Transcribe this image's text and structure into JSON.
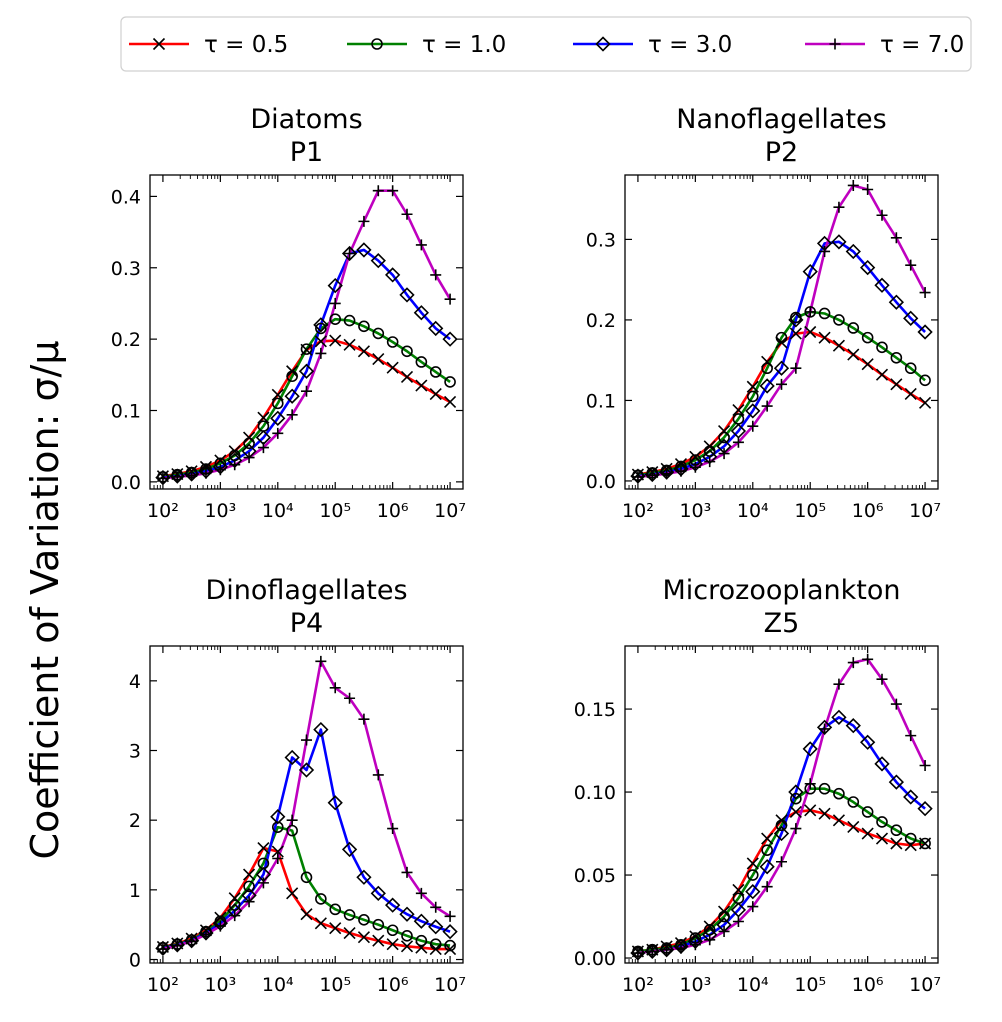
{
  "figure": {
    "ylabel": "Coefficient of Variation: σ/μ"
  },
  "legend": {
    "entries": [
      {
        "label": "τ = 0.5",
        "color": "#ff0000",
        "marker": "x"
      },
      {
        "label": "τ = 1.0",
        "color": "#008000",
        "marker": "o"
      },
      {
        "label": "τ = 3.0",
        "color": "#0000ff",
        "marker": "D"
      },
      {
        "label": "τ = 7.0",
        "color": "#bf00bf",
        "marker": "+"
      }
    ]
  },
  "chart_data": [
    {
      "type": "line",
      "title_line1": "Diatoms",
      "title_line2": "P1",
      "xscale": "log",
      "xlim": [
        100,
        10000000
      ],
      "xticks": [
        "10²",
        "10³",
        "10⁴",
        "10⁵",
        "10⁶",
        "10⁷"
      ],
      "ylim": [
        -0.01,
        0.43
      ],
      "yticks": [
        "0.0",
        "0.1",
        "0.2",
        "0.3",
        "0.4"
      ],
      "ytick_values": [
        0,
        0.1,
        0.2,
        0.3,
        0.4
      ],
      "x": [
        100,
        178,
        316,
        562,
        1000,
        1778,
        3162,
        5623,
        10000,
        17783,
        31623,
        56234,
        100000,
        177828,
        316228,
        562341,
        1000000,
        1778279,
        3162278,
        5623413,
        10000000
      ],
      "series": [
        {
          "name": "τ = 0.5",
          "values": [
            0.008,
            0.011,
            0.015,
            0.021,
            0.03,
            0.043,
            0.062,
            0.09,
            0.122,
            0.155,
            0.185,
            0.197,
            0.198,
            0.192,
            0.183,
            0.172,
            0.16,
            0.147,
            0.135,
            0.123,
            0.112
          ]
        },
        {
          "name": "τ = 1.0",
          "values": [
            0.007,
            0.01,
            0.013,
            0.018,
            0.026,
            0.037,
            0.054,
            0.078,
            0.11,
            0.148,
            0.186,
            0.215,
            0.228,
            0.226,
            0.218,
            0.208,
            0.196,
            0.183,
            0.168,
            0.154,
            0.14
          ]
        },
        {
          "name": "τ = 3.0",
          "values": [
            0.006,
            0.008,
            0.011,
            0.015,
            0.021,
            0.03,
            0.043,
            0.062,
            0.089,
            0.12,
            0.155,
            0.22,
            0.275,
            0.32,
            0.325,
            0.31,
            0.29,
            0.262,
            0.237,
            0.215,
            0.2
          ]
        },
        {
          "name": "τ = 7.0",
          "values": [
            0.005,
            0.007,
            0.009,
            0.012,
            0.017,
            0.024,
            0.034,
            0.048,
            0.068,
            0.094,
            0.127,
            0.18,
            0.25,
            0.32,
            0.365,
            0.408,
            0.408,
            0.375,
            0.332,
            0.29,
            0.256
          ]
        }
      ]
    },
    {
      "type": "line",
      "title_line1": "Nanoflagellates",
      "title_line2": "P2",
      "xscale": "log",
      "xlim": [
        100,
        10000000
      ],
      "xticks": [
        "10²",
        "10³",
        "10⁴",
        "10⁵",
        "10⁶",
        "10⁷"
      ],
      "ylim": [
        -0.01,
        0.38
      ],
      "yticks": [
        "0.0",
        "0.1",
        "0.2",
        "0.3"
      ],
      "ytick_values": [
        0,
        0.1,
        0.2,
        0.3
      ],
      "x": [
        100,
        178,
        316,
        562,
        1000,
        1778,
        3162,
        5623,
        10000,
        17783,
        31623,
        56234,
        100000,
        177828,
        316228,
        562341,
        1000000,
        1778279,
        3162278,
        5623413,
        10000000
      ],
      "series": [
        {
          "name": "τ = 0.5",
          "values": [
            0.008,
            0.011,
            0.015,
            0.021,
            0.03,
            0.043,
            0.062,
            0.088,
            0.117,
            0.148,
            0.172,
            0.183,
            0.185,
            0.178,
            0.168,
            0.157,
            0.145,
            0.132,
            0.12,
            0.108,
            0.097
          ]
        },
        {
          "name": "τ = 1.0",
          "values": [
            0.007,
            0.01,
            0.013,
            0.018,
            0.026,
            0.037,
            0.054,
            0.077,
            0.105,
            0.14,
            0.178,
            0.203,
            0.21,
            0.208,
            0.2,
            0.19,
            0.178,
            0.166,
            0.153,
            0.14,
            0.125
          ]
        },
        {
          "name": "τ = 3.0",
          "values": [
            0.006,
            0.008,
            0.011,
            0.015,
            0.021,
            0.03,
            0.043,
            0.062,
            0.087,
            0.118,
            0.14,
            0.2,
            0.26,
            0.295,
            0.297,
            0.285,
            0.265,
            0.243,
            0.222,
            0.202,
            0.185
          ]
        },
        {
          "name": "τ = 7.0",
          "values": [
            0.005,
            0.007,
            0.009,
            0.012,
            0.017,
            0.024,
            0.034,
            0.048,
            0.068,
            0.093,
            0.12,
            0.14,
            0.21,
            0.285,
            0.34,
            0.367,
            0.362,
            0.33,
            0.302,
            0.268,
            0.234
          ]
        }
      ]
    },
    {
      "type": "line",
      "title_line1": "Dinoflagellates",
      "title_line2": "P4",
      "xscale": "log",
      "xlim": [
        100,
        10000000
      ],
      "xticks": [
        "10²",
        "10³",
        "10⁴",
        "10⁵",
        "10⁶",
        "10⁷"
      ],
      "ylim": [
        -0.05,
        4.5
      ],
      "yticks": [
        "0",
        "1",
        "2",
        "3",
        "4"
      ],
      "ytick_values": [
        0,
        1,
        2,
        3,
        4
      ],
      "x": [
        100,
        178,
        316,
        562,
        1000,
        1778,
        3162,
        5623,
        10000,
        17783,
        31623,
        56234,
        100000,
        177828,
        316228,
        562341,
        1000000,
        1778279,
        3162278,
        5623413,
        10000000
      ],
      "series": [
        {
          "name": "τ = 0.5",
          "values": [
            0.18,
            0.23,
            0.3,
            0.42,
            0.6,
            0.88,
            1.22,
            1.6,
            1.55,
            0.95,
            0.65,
            0.52,
            0.45,
            0.38,
            0.32,
            0.27,
            0.22,
            0.19,
            0.17,
            0.15,
            0.15
          ]
        },
        {
          "name": "τ = 1.0",
          "values": [
            0.17,
            0.22,
            0.28,
            0.4,
            0.55,
            0.78,
            1.05,
            1.38,
            1.9,
            1.85,
            1.18,
            0.87,
            0.72,
            0.64,
            0.57,
            0.5,
            0.42,
            0.34,
            0.27,
            0.22,
            0.2
          ]
        },
        {
          "name": "τ = 3.0",
          "values": [
            0.16,
            0.21,
            0.27,
            0.38,
            0.52,
            0.7,
            0.92,
            1.22,
            2.05,
            2.9,
            2.72,
            3.3,
            2.25,
            1.58,
            1.18,
            0.95,
            0.78,
            0.65,
            0.55,
            0.47,
            0.4
          ]
        },
        {
          "name": "τ = 7.0",
          "values": [
            0.15,
            0.2,
            0.26,
            0.36,
            0.48,
            0.63,
            0.83,
            1.1,
            1.45,
            2.0,
            3.15,
            4.28,
            3.9,
            3.75,
            3.45,
            2.65,
            1.88,
            1.25,
            0.95,
            0.75,
            0.62
          ]
        }
      ]
    },
    {
      "type": "line",
      "title_line1": "Microzooplankton",
      "title_line2": "Z5",
      "xscale": "log",
      "xlim": [
        100,
        10000000
      ],
      "xticks": [
        "10²",
        "10³",
        "10⁴",
        "10⁵",
        "10⁶",
        "10⁷"
      ],
      "ylim": [
        -0.003,
        0.188
      ],
      "yticks": [
        "0.00",
        "0.05",
        "0.10",
        "0.15"
      ],
      "ytick_values": [
        0,
        0.05,
        0.1,
        0.15
      ],
      "x": [
        100,
        178,
        316,
        562,
        1000,
        1778,
        3162,
        5623,
        10000,
        17783,
        31623,
        56234,
        100000,
        177828,
        316228,
        562341,
        1000000,
        1778279,
        3162278,
        5623413,
        10000000
      ],
      "series": [
        {
          "name": "τ = 0.5",
          "values": [
            0.004,
            0.005,
            0.007,
            0.009,
            0.013,
            0.019,
            0.028,
            0.041,
            0.057,
            0.072,
            0.083,
            0.088,
            0.089,
            0.087,
            0.083,
            0.079,
            0.075,
            0.072,
            0.069,
            0.068,
            0.069
          ]
        },
        {
          "name": "τ = 1.0",
          "values": [
            0.004,
            0.005,
            0.006,
            0.008,
            0.012,
            0.017,
            0.025,
            0.036,
            0.05,
            0.065,
            0.08,
            0.096,
            0.102,
            0.102,
            0.099,
            0.094,
            0.088,
            0.082,
            0.077,
            0.072,
            0.069
          ]
        },
        {
          "name": "τ = 3.0",
          "values": [
            0.003,
            0.004,
            0.005,
            0.007,
            0.01,
            0.014,
            0.02,
            0.029,
            0.04,
            0.055,
            0.075,
            0.1,
            0.126,
            0.139,
            0.145,
            0.14,
            0.13,
            0.117,
            0.106,
            0.097,
            0.09
          ]
        },
        {
          "name": "τ = 7.0",
          "values": [
            0.003,
            0.004,
            0.005,
            0.006,
            0.008,
            0.011,
            0.016,
            0.022,
            0.031,
            0.043,
            0.058,
            0.078,
            0.105,
            0.138,
            0.165,
            0.178,
            0.18,
            0.168,
            0.153,
            0.134,
            0.116
          ]
        }
      ]
    }
  ]
}
